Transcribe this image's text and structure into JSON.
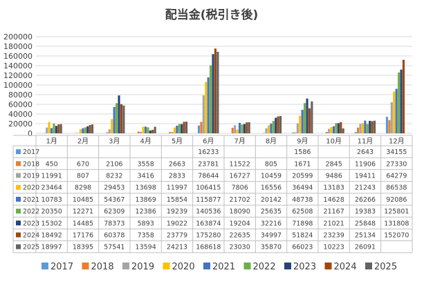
{
  "chart_data": {
    "type": "bar",
    "title": "配当金(税引き後)",
    "categories": [
      "1月",
      "2月",
      "3月",
      "4月",
      "5月",
      "6月",
      "7月",
      "8月",
      "9月",
      "10月",
      "11月",
      "12月"
    ],
    "ylim": [
      0,
      200000
    ],
    "yticks": [
      "0",
      "20000",
      "40000",
      "60000",
      "80000",
      "100000",
      "120000",
      "140000",
      "160000",
      "180000",
      "200000"
    ],
    "grid": true,
    "legend_position": "bottom",
    "series": [
      {
        "name": "2017",
        "color": "#5B9BD5",
        "values": [
          null,
          null,
          null,
          null,
          null,
          16233,
          null,
          null,
          1586,
          null,
          2643,
          34155
        ]
      },
      {
        "name": "2018",
        "color": "#ED7D31",
        "values": [
          450,
          670,
          2106,
          3558,
          2663,
          23781,
          11522,
          805,
          1671,
          2845,
          11906,
          27330
        ]
      },
      {
        "name": "2019",
        "color": "#A5A5A5",
        "values": [
          11991,
          807,
          8232,
          3416,
          2833,
          78644,
          16727,
          10459,
          20599,
          9486,
          19411,
          64279
        ]
      },
      {
        "name": "2020",
        "color": "#FFC000",
        "values": [
          23464,
          8298,
          29453,
          13698,
          11997,
          106415,
          7806,
          16556,
          36494,
          13183,
          21243,
          86538
        ]
      },
      {
        "name": "2021",
        "color": "#4472C4",
        "values": [
          10783,
          10485,
          54367,
          13869,
          15854,
          115877,
          21702,
          20142,
          48738,
          14628,
          26266,
          92086
        ]
      },
      {
        "name": "2022",
        "color": "#70AD47",
        "values": [
          20350,
          12271,
          62309,
          12386,
          19239,
          140536,
          18090,
          25635,
          62508,
          21167,
          19383,
          125801
        ]
      },
      {
        "name": "2023",
        "color": "#264478",
        "values": [
          15302,
          14485,
          78373,
          5893,
          19022,
          163874,
          19204,
          32216,
          71898,
          21021,
          25848,
          131808
        ]
      },
      {
        "name": "2024",
        "color": "#9E480E",
        "values": [
          18492,
          17176,
          60378,
          7358,
          23779,
          175280,
          22635,
          34997,
          51824,
          23239,
          25134,
          152070
        ]
      },
      {
        "name": "2025",
        "color": "#636363",
        "values": [
          18997,
          18395,
          57541,
          13594,
          24213,
          168618,
          23030,
          35870,
          66023,
          10223,
          26091,
          null
        ]
      }
    ]
  }
}
